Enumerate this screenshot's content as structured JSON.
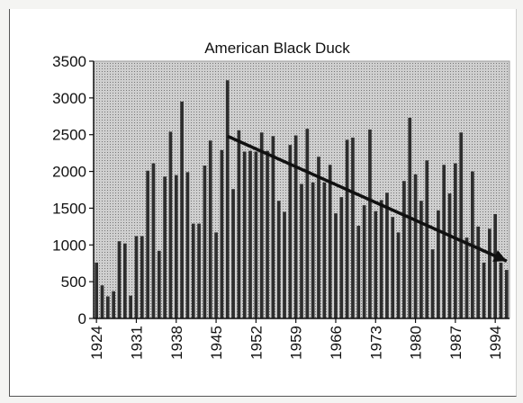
{
  "chart_data": {
    "type": "bar",
    "title": "American Black Duck",
    "xlabel": "",
    "ylabel": "",
    "ylim": [
      0,
      3500
    ],
    "yticks": [
      0,
      500,
      1000,
      1500,
      2000,
      2500,
      3000,
      3500
    ],
    "x_start": 1924,
    "x_end": 1996,
    "xticks": [
      1924,
      1931,
      1938,
      1945,
      1952,
      1959,
      1966,
      1973,
      1980,
      1987,
      1994
    ],
    "values": [
      760,
      450,
      300,
      370,
      1050,
      1020,
      310,
      1120,
      1120,
      2010,
      2110,
      920,
      1930,
      2540,
      1950,
      2950,
      1990,
      1290,
      1290,
      2080,
      2420,
      1170,
      2290,
      3240,
      1760,
      2560,
      2270,
      2280,
      2270,
      2530,
      2280,
      2480,
      1600,
      1450,
      2360,
      2490,
      1830,
      2580,
      1850,
      2200,
      1850,
      2090,
      1430,
      1650,
      2430,
      2460,
      1260,
      1540,
      2570,
      1460,
      1610,
      1710,
      1380,
      1170,
      1870,
      2730,
      1960,
      1600,
      2150,
      940,
      1470,
      2090,
      1700,
      2110,
      2530,
      1100,
      2000,
      1250,
      760,
      1220,
      1420,
      760,
      660
    ],
    "trendline": {
      "x": [
        1947,
        1996
      ],
      "y": [
        2480,
        780
      ]
    },
    "grid": false,
    "legend": "none",
    "colors": {
      "plot_fill": "#c9c9c9",
      "bar": "#2d2d2d",
      "trend": "#111111"
    }
  }
}
